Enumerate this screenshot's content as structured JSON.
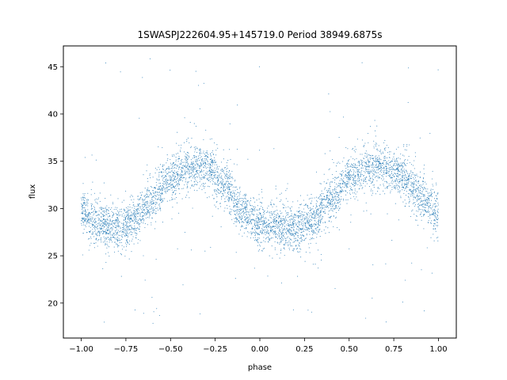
{
  "chart_data": {
    "type": "scatter",
    "title": "1SWASPJ222604.95+145719.0 Period 38949.6875s",
    "xlabel": "phase",
    "ylabel": "flux",
    "xlim": [
      -1.1,
      1.1
    ],
    "ylim": [
      16.3,
      47.2
    ],
    "xticks": [
      -1.0,
      -0.75,
      -0.5,
      -0.25,
      0.0,
      0.25,
      0.5,
      0.75,
      1.0
    ],
    "xtick_labels": [
      "−1.00",
      "−0.75",
      "−0.50",
      "−0.25",
      "0.00",
      "0.25",
      "0.50",
      "0.75",
      "1.00"
    ],
    "yticks": [
      20,
      25,
      30,
      35,
      40,
      45
    ],
    "ytick_labels": [
      "20",
      "25",
      "30",
      "35",
      "40",
      "45"
    ],
    "grid": false,
    "legend": "none",
    "series": [
      {
        "color": "#1f77b4",
        "phase_range": [
          -1.0,
          1.0
        ],
        "profile_phase": [
          -1.0,
          -0.9,
          -0.8,
          -0.7,
          -0.6,
          -0.5,
          -0.4,
          -0.35,
          -0.3,
          -0.2,
          -0.1,
          0.0,
          0.1,
          0.2,
          0.3,
          0.4,
          0.5,
          0.6,
          0.65,
          0.7,
          0.8,
          0.9,
          1.0
        ],
        "profile_flux": [
          29.5,
          28.3,
          28.0,
          28.8,
          31.0,
          33.3,
          34.3,
          34.5,
          34.3,
          32.5,
          29.8,
          28.3,
          28.0,
          28.0,
          28.8,
          31.0,
          33.3,
          34.3,
          34.5,
          34.3,
          33.4,
          31.5,
          29.5
        ],
        "scatter_sigma": 1.1,
        "outlier_range": [
          17.5,
          46.0
        ]
      }
    ]
  }
}
